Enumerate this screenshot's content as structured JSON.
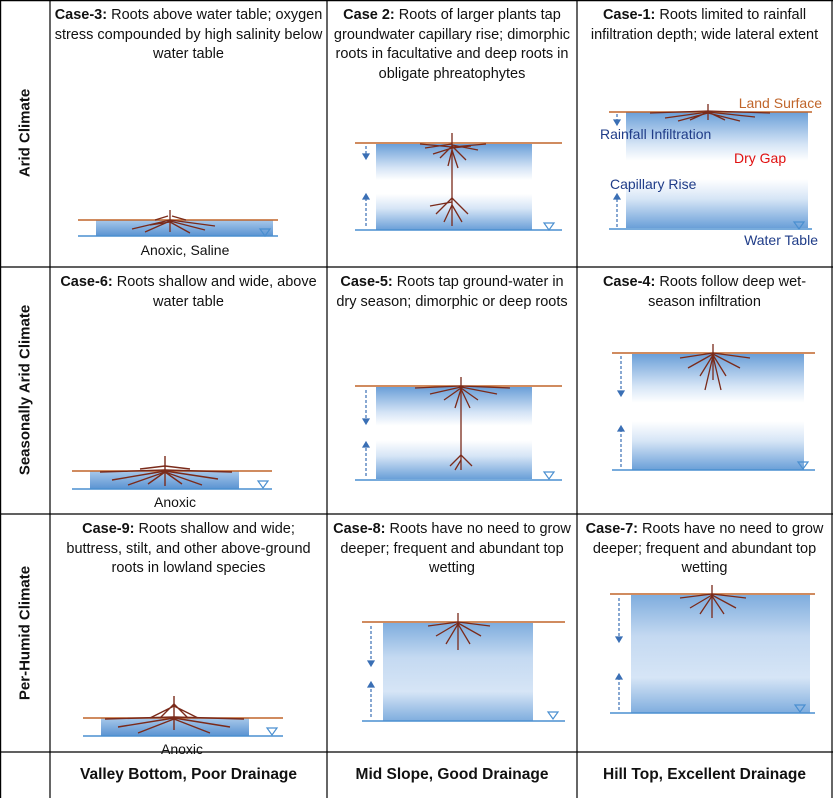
{
  "rows": [
    {
      "label": "Arid Climate"
    },
    {
      "label": "Seasonally Arid Climate"
    },
    {
      "label": "Per-Humid Climate"
    }
  ],
  "columns": [
    {
      "label": "Valley Bottom, Poor Drainage"
    },
    {
      "label": "Mid Slope, Good Drainage"
    },
    {
      "label": "Hill Top, Excellent Drainage"
    }
  ],
  "cases": {
    "case3": {
      "title": "Case-3:",
      "text": " Roots above water table; oxygen stress compounded by high salinity below water table",
      "note": "Anoxic, Saline"
    },
    "case2": {
      "title": "Case 2:",
      "text": " Roots of larger plants tap groundwater capillary rise; dimorphic roots in facultative and deep roots in obligate phreatophytes"
    },
    "case1": {
      "title": "Case-1:",
      "text": " Roots limited to rainfall infiltration depth; wide lateral extent"
    },
    "case6": {
      "title": "Case-6:",
      "text": " Roots shallow and wide, above water table",
      "note": "Anoxic"
    },
    "case5": {
      "title": "Case-5:",
      "text": " Roots tap ground-water in dry season; dimorphic or deep roots"
    },
    "case4": {
      "title": "Case-4:",
      "text": " Roots follow deep wet-season infiltration"
    },
    "case9": {
      "title": "Case-9:",
      "text": " Roots shallow and wide; buttress, stilt, and other above-ground roots in lowland species",
      "note": "Anoxic"
    },
    "case8": {
      "title": "Case-8:",
      "text": " Roots have no need to grow deeper; frequent and abundant top wetting"
    },
    "case7": {
      "title": "Case-7:",
      "text": " Roots have no need to grow deeper; frequent and abundant top wetting"
    }
  },
  "legend": {
    "land_surface": "Land Surface",
    "rainfall_infiltration": "Rainfall Infiltration",
    "dry_gap": "Dry Gap",
    "capillary_rise": "Capillary Rise",
    "water_table": "Water Table"
  },
  "colors": {
    "land_surface": "#c0652a",
    "water": "#4a8fd0",
    "root": "#7a2a1a",
    "legend_blue": "#1f3c88",
    "dry_gap": "#e01010",
    "grid": "#000000"
  }
}
